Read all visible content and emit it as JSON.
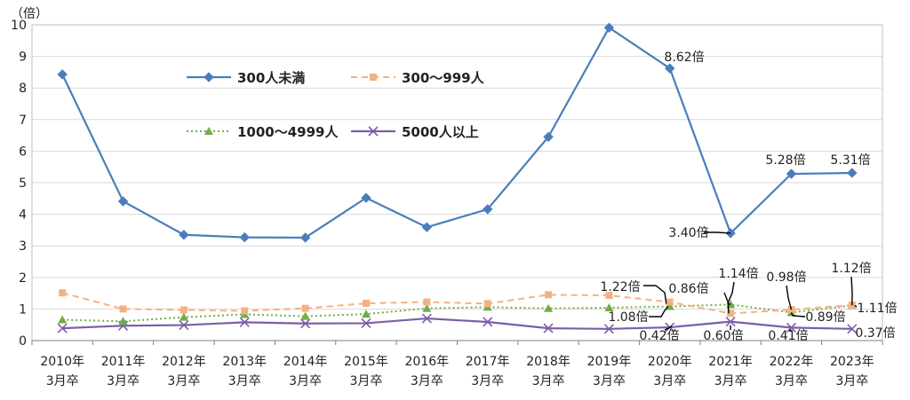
{
  "chart_data": {
    "type": "line",
    "unit_label": "（倍）",
    "categories": [
      [
        "2010年",
        "3月卒"
      ],
      [
        "2011年",
        "3月卒"
      ],
      [
        "2012年",
        "3月卒"
      ],
      [
        "2013年",
        "3月卒"
      ],
      [
        "2014年",
        "3月卒"
      ],
      [
        "2015年",
        "3月卒"
      ],
      [
        "2016年",
        "3月卒"
      ],
      [
        "2017年",
        "3月卒"
      ],
      [
        "2018年",
        "3月卒"
      ],
      [
        "2019年",
        "3月卒"
      ],
      [
        "2020年",
        "3月卒"
      ],
      [
        "2021年",
        "3月卒"
      ],
      [
        "2022年",
        "3月卒"
      ],
      [
        "2023年",
        "3月卒"
      ]
    ],
    "ylim": [
      0,
      10
    ],
    "yticks": [
      0,
      1,
      2,
      3,
      4,
      5,
      6,
      7,
      8,
      9,
      10
    ],
    "grid": true,
    "series": [
      {
        "name": "300人未満",
        "color": "#4a7ebb",
        "marker": "diamond",
        "line_style": "solid",
        "values": [
          8.43,
          4.41,
          3.35,
          3.27,
          3.26,
          4.52,
          3.59,
          4.16,
          6.45,
          9.91,
          8.62,
          3.4,
          5.28,
          5.31
        ]
      },
      {
        "name": "300～999人",
        "color": "#f4b183",
        "marker": "square",
        "line_style": "dashed",
        "values": [
          1.51,
          1.0,
          0.97,
          0.94,
          1.02,
          1.18,
          1.22,
          1.17,
          1.45,
          1.43,
          1.22,
          0.86,
          0.98,
          1.12
        ]
      },
      {
        "name": "1000～4999人",
        "color": "#70ad47",
        "marker": "triangle",
        "line_style": "dotted",
        "values": [
          0.66,
          0.61,
          0.74,
          0.83,
          0.77,
          0.84,
          1.02,
          1.06,
          1.02,
          1.04,
          1.08,
          1.14,
          0.89,
          1.11
        ]
      },
      {
        "name": "5000人以上",
        "color": "#7b5ea7",
        "marker": "x",
        "line_style": "solid",
        "values": [
          0.39,
          0.47,
          0.49,
          0.58,
          0.54,
          0.55,
          0.7,
          0.59,
          0.39,
          0.37,
          0.42,
          0.6,
          0.41,
          0.37
        ]
      }
    ],
    "annotations": [
      {
        "text": "8.62倍"
      },
      {
        "text": "3.40倍"
      },
      {
        "text": "5.28倍"
      },
      {
        "text": "5.31倍"
      },
      {
        "text": "1.22倍"
      },
      {
        "text": "1.08倍"
      },
      {
        "text": "0.42倍"
      },
      {
        "text": "0.86倍"
      },
      {
        "text": "1.14倍"
      },
      {
        "text": "0.60倍"
      },
      {
        "text": "0.98倍"
      },
      {
        "text": "0.89倍"
      },
      {
        "text": "0.41倍"
      },
      {
        "text": "1.12倍"
      },
      {
        "text": "1.11倍"
      },
      {
        "text": "0.37倍"
      }
    ]
  }
}
